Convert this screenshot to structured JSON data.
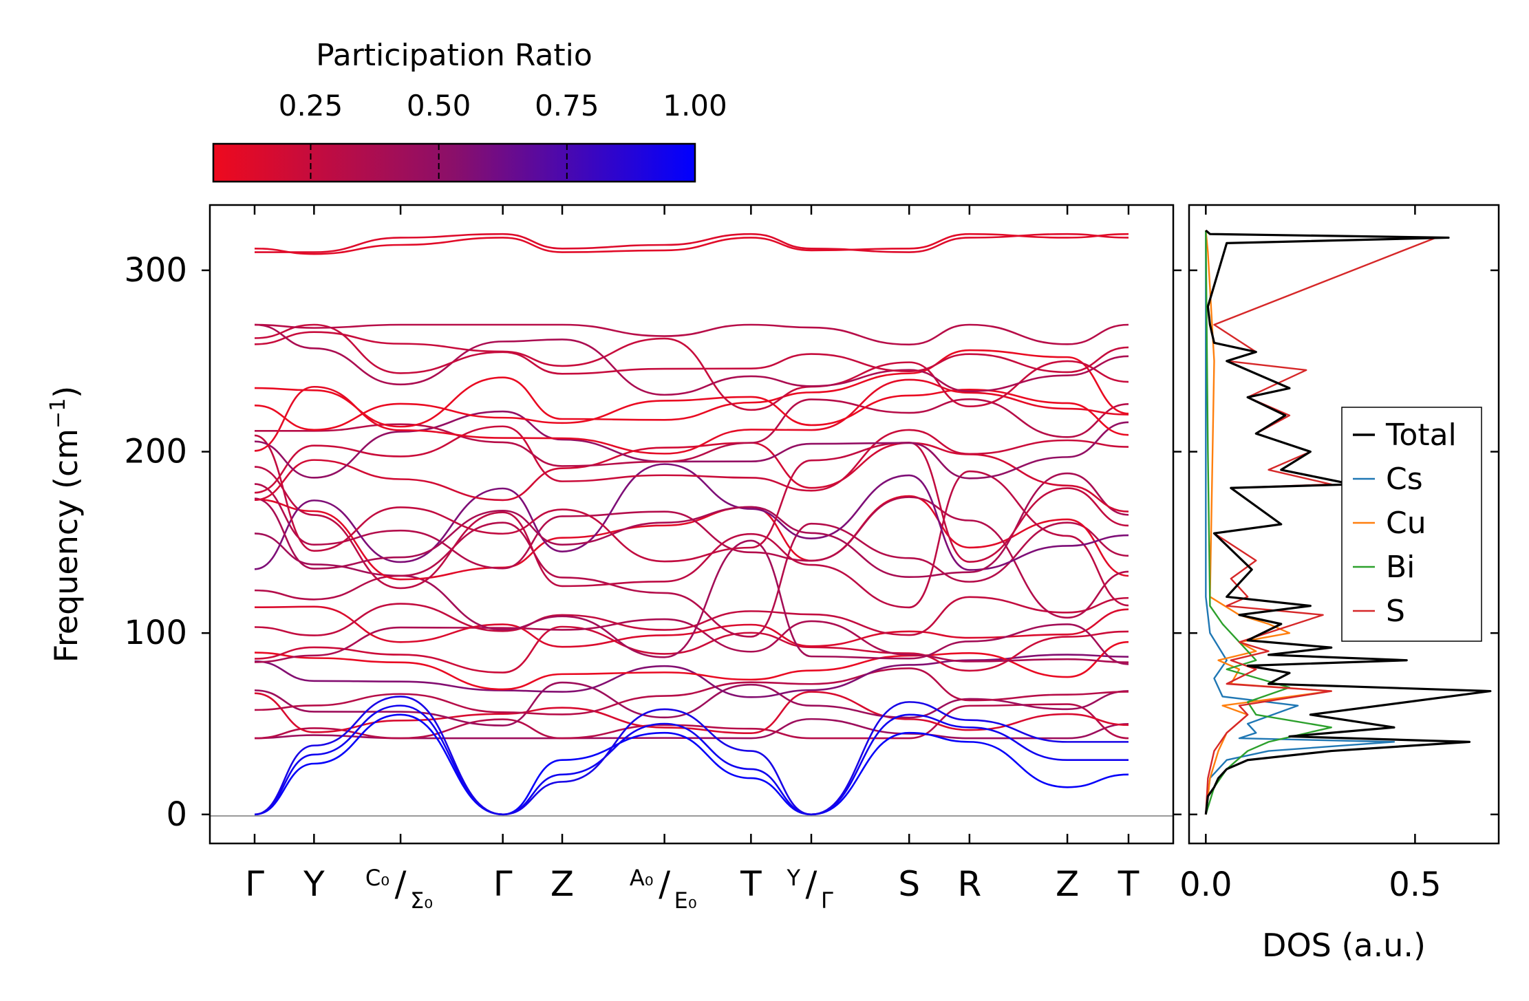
{
  "chart_data": [
    {
      "type": "line",
      "title": "",
      "xlabel": "",
      "ylabel": "Frequency (cm",
      "ylabel_unit_sup": "−1",
      "ylabel_close": ")",
      "ylim": [
        -16,
        336
      ],
      "yticks": [
        0,
        100,
        200,
        300
      ],
      "high_symmetry_points": [
        {
          "label": "Γ",
          "k": 0.0
        },
        {
          "label": "Y",
          "k": 0.068
        },
        {
          "label_top": "C₀",
          "label_bottom": "Σ₀",
          "k": 0.167
        },
        {
          "label": "Γ",
          "k": 0.284
        },
        {
          "label": "Z",
          "k": 0.352
        },
        {
          "label_top": "A₀",
          "label_bottom": "E₀",
          "k": 0.469
        },
        {
          "label": "T",
          "k": 0.568
        },
        {
          "label_top": "Y",
          "label_bottom": "Γ",
          "k": 0.637
        },
        {
          "label": "S",
          "k": 0.749
        },
        {
          "label": "R",
          "k": 0.818
        },
        {
          "label": "Z",
          "k": 0.93
        },
        {
          "label": "T",
          "k": 1.0
        }
      ],
      "segment_breaks": [
        0.637
      ],
      "colorbar": {
        "label": "Participation Ratio",
        "ticks": [
          0.25,
          0.5,
          0.75,
          1.0
        ],
        "tick_labels": [
          "0.25",
          "0.50",
          "0.75",
          "1.00"
        ],
        "range": [
          0.06,
          1.0
        ],
        "color_low": "#ee0a1e",
        "color_mid": "#8a0f6a",
        "color_high": "#0000ff"
      },
      "high_bands": [
        {
          "values": [
            310,
            310,
            318,
            320,
            312,
            314,
            320,
            312,
            310,
            318,
            320,
            318,
            310
          ],
          "pr": 0.14
        },
        {
          "values": [
            312,
            309,
            314,
            318,
            310,
            311,
            318,
            311,
            312,
            320,
            318,
            320,
            312
          ],
          "pr": 0.12
        }
      ],
      "optical_band_count": 30,
      "optical_band_range": [
        42,
        270
      ],
      "acoustic_bands": [
        {
          "values": [
            0,
            28,
            55,
            0,
            30,
            45,
            20,
            0,
            45,
            40,
            15,
            22
          ],
          "pr": 0.98
        },
        {
          "values": [
            0,
            33,
            60,
            0,
            22,
            50,
            25,
            0,
            55,
            48,
            30,
            30
          ],
          "pr": 0.95
        },
        {
          "values": [
            0,
            38,
            65,
            0,
            18,
            58,
            35,
            0,
            62,
            52,
            40,
            40
          ],
          "pr": 0.92
        }
      ]
    },
    {
      "type": "line",
      "title": "",
      "xlabel": "DOS (a.u.)",
      "ylabel": "",
      "xlim": [
        -0.04,
        0.7
      ],
      "xticks": [
        0.0,
        0.5
      ],
      "xtick_labels": [
        "0.0",
        "0.5"
      ],
      "ylim": [
        -16,
        336
      ],
      "legend_position": "right",
      "series": [
        {
          "name": "Total",
          "color": "#000000",
          "x": [
            0,
            0.005,
            0.02,
            0.03,
            0.05,
            0.1,
            0.3,
            0.63,
            0.2,
            0.45,
            0.25,
            0.68,
            0.15,
            0.2,
            0.1,
            0.48,
            0.15,
            0.3,
            0.1,
            0.18,
            0.08,
            0.25,
            0.05,
            0.11,
            0.02,
            0.18,
            0.06,
            0.35,
            0.18,
            0.25,
            0.12,
            0.19,
            0.1,
            0.2,
            0.05,
            0.12,
            0.02,
            0.01,
            0.005,
            0.05,
            0.58,
            0.01,
            0
          ],
          "y": [
            0,
            10,
            15,
            20,
            25,
            30,
            35,
            40,
            43,
            48,
            55,
            68,
            72,
            78,
            82,
            85,
            88,
            92,
            96,
            105,
            110,
            115,
            120,
            135,
            155,
            160,
            180,
            182,
            190,
            200,
            210,
            220,
            230,
            235,
            250,
            255,
            260,
            270,
            280,
            315,
            318,
            320,
            322
          ]
        },
        {
          "name": "Cs",
          "color": "#1f77b4",
          "x": [
            0,
            0.01,
            0.05,
            0.15,
            0.45,
            0.08,
            0.12,
            0.1,
            0.22,
            0.04,
            0.02,
            0.05,
            0.01,
            0,
            0
          ],
          "y": [
            0,
            20,
            30,
            35,
            40,
            42,
            45,
            50,
            60,
            65,
            75,
            85,
            100,
            120,
            322
          ]
        },
        {
          "name": "Cu",
          "color": "#ff7f0e",
          "x": [
            0,
            0.01,
            0.03,
            0.05,
            0.1,
            0.04,
            0.3,
            0.06,
            0.08,
            0.03,
            0.12,
            0.08,
            0.2,
            0.15,
            0.08,
            0.01,
            0.02,
            0.005,
            0
          ],
          "y": [
            0,
            20,
            35,
            45,
            55,
            60,
            68,
            72,
            80,
            85,
            90,
            95,
            100,
            105,
            110,
            120,
            250,
            310,
            322
          ]
        },
        {
          "name": "Bi",
          "color": "#2ca02c",
          "x": [
            0,
            0.02,
            0.05,
            0.1,
            0.15,
            0.3,
            0.12,
            0.1,
            0.2,
            0.05,
            0.12,
            0.08,
            0.04,
            0.01,
            0.005,
            0
          ],
          "y": [
            0,
            15,
            25,
            35,
            40,
            48,
            55,
            62,
            70,
            80,
            85,
            95,
            105,
            115,
            200,
            322
          ]
        },
        {
          "name": "S",
          "color": "#d62728",
          "x": [
            0,
            0.005,
            0.02,
            0.05,
            0.1,
            0.08,
            0.3,
            0.05,
            0.12,
            0.06,
            0.15,
            0.08,
            0.28,
            0.05,
            0.1,
            0.06,
            0.12,
            0.02,
            0.18,
            0.06,
            0.3,
            0.15,
            0.25,
            0.12,
            0.2,
            0.1,
            0.24,
            0.05,
            0.12,
            0.02,
            0.55,
            0.01,
            0
          ],
          "y": [
            0,
            20,
            35,
            45,
            55,
            60,
            68,
            72,
            80,
            85,
            90,
            95,
            110,
            115,
            120,
            130,
            140,
            155,
            160,
            180,
            182,
            190,
            200,
            210,
            220,
            230,
            245,
            250,
            255,
            270,
            318,
            320,
            322
          ]
        }
      ]
    }
  ]
}
